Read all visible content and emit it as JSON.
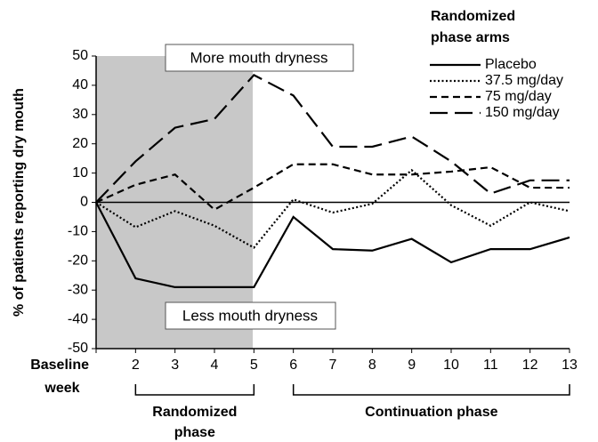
{
  "chart_data": {
    "type": "line",
    "y_label": "% of patients reporting dry mouth",
    "x_label": "week",
    "categories": [
      "Baseline",
      "2",
      "3",
      "4",
      "5",
      "6",
      "7",
      "8",
      "9",
      "10",
      "11",
      "12",
      "13"
    ],
    "ylim": [
      -50,
      50
    ],
    "yticks": [
      -50,
      -40,
      -30,
      -20,
      -10,
      0,
      10,
      20,
      30,
      40,
      50
    ],
    "legend_title": [
      "Randomized",
      "phase arms"
    ],
    "legend": "top-right",
    "annotations": [
      "More mouth dryness",
      "Less mouth dryness"
    ],
    "phases": [
      [
        "Randomized",
        "phase"
      ],
      [
        "Continuation phase"
      ]
    ],
    "series": [
      {
        "name": "Placebo",
        "color": "#000000",
        "dash": "solid",
        "values": [
          0,
          -26,
          -29,
          -29,
          -29,
          -5,
          -16,
          -16.5,
          -12.5,
          -20.5,
          -16,
          -16,
          -12
        ]
      },
      {
        "name": "37.5 mg/day",
        "color": "#000000",
        "dash": "dotted",
        "values": [
          0,
          -8.5,
          -3,
          -8,
          -15.5,
          1,
          -3.5,
          -0.5,
          11,
          -1,
          -8,
          0,
          -3
        ]
      },
      {
        "name": "75 mg/day",
        "color": "#000000",
        "dash": "dashed",
        "values": [
          0,
          6,
          9.5,
          -2.5,
          5,
          13,
          13,
          9.5,
          9.5,
          10.5,
          12,
          5,
          5
        ]
      },
      {
        "name": "150 mg/day",
        "color": "#000000",
        "dash": "longdash",
        "values": [
          0,
          14,
          25.5,
          28.5,
          43.5,
          36.5,
          19,
          19,
          22.5,
          14,
          3,
          7.5,
          7.5
        ]
      }
    ]
  }
}
